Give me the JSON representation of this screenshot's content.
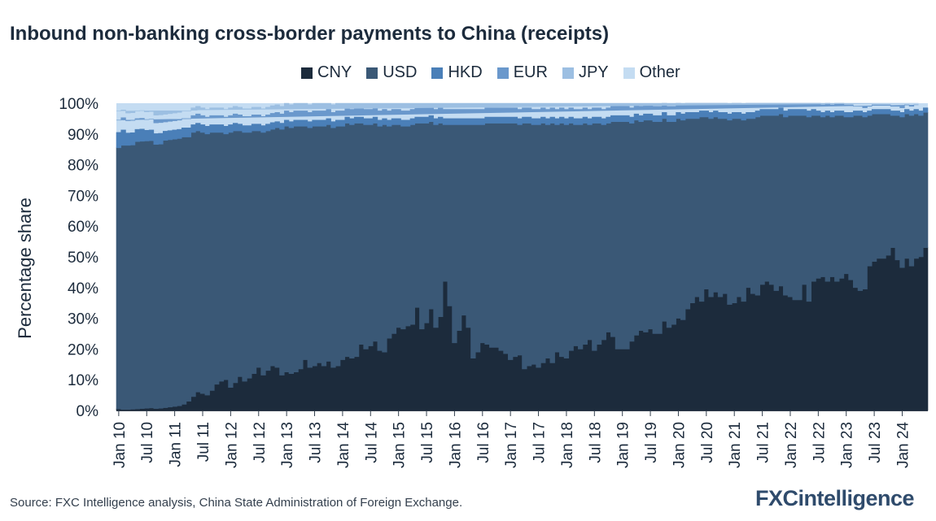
{
  "logo_text": "FXCintelligence",
  "source": "Source: FXC Intelligence analysis, China State Administration of Foreign Exchange.",
  "chart_data": {
    "type": "area",
    "stacked": true,
    "step": true,
    "title": "Inbound non-banking cross-border payments to China (receipts)",
    "xlabel": "",
    "ylabel": "Percentage share",
    "ylim": [
      0,
      100
    ],
    "y_ticks": [
      "0%",
      "10%",
      "20%",
      "30%",
      "40%",
      "50%",
      "60%",
      "70%",
      "80%",
      "90%",
      "100%"
    ],
    "x_tick_labels": [
      "Jan 10",
      "Jul 10",
      "Jan 11",
      "Jul 11",
      "Jan 12",
      "Jul 12",
      "Jan 13",
      "Jul 13",
      "Jan 14",
      "Jul 14",
      "Jan 15",
      "Jul 15",
      "Jan 16",
      "Jul 16",
      "Jan 17",
      "Jul 17",
      "Jan 18",
      "Jul 18",
      "Jan 19",
      "Jul 19",
      "Jan 20",
      "Jul 20",
      "Jan 21",
      "Jul 21",
      "Jan 22",
      "Jul 22",
      "Jan 23",
      "Jul 23",
      "Jan 24"
    ],
    "legend_position": "top",
    "grid": false,
    "period_start": "2010-01",
    "period_end": "2024-06",
    "frequency": "monthly",
    "series": [
      {
        "name": "CNY",
        "color": "#1c2b3c",
        "values": [
          0.5,
          0.3,
          0.3,
          0.4,
          0.5,
          0.6,
          0.7,
          0.8,
          0.6,
          0.7,
          0.9,
          1.1,
          1.3,
          1.5,
          2.0,
          3.0,
          4.5,
          6.0,
          5.5,
          5.0,
          6.5,
          8.5,
          9.5,
          10.0,
          7.5,
          9.0,
          11.0,
          9.5,
          10.5,
          12.0,
          14.0,
          11.5,
          13.0,
          14.5,
          14.0,
          11.5,
          12.5,
          12.0,
          12.5,
          13.5,
          16.5,
          14.0,
          14.5,
          15.5,
          14.5,
          16.0,
          14.0,
          14.5,
          16.5,
          17.5,
          17.0,
          17.5,
          21.5,
          20.0,
          21.0,
          22.5,
          19.5,
          19.0,
          23.5,
          25.0,
          27.0,
          26.5,
          27.5,
          28.0,
          33.5,
          26.5,
          28.5,
          33.0,
          27.0,
          30.5,
          42.0,
          34.0,
          22.0,
          26.0,
          31.0,
          27.0,
          17.0,
          19.0,
          22.0,
          21.5,
          20.5,
          20.5,
          19.5,
          18.5,
          16.5,
          17.5,
          18.0,
          13.5,
          14.5,
          15.0,
          14.0,
          15.5,
          17.0,
          15.5,
          19.0,
          17.5,
          17.0,
          19.5,
          21.0,
          20.0,
          21.5,
          23.0,
          19.5,
          21.5,
          23.0,
          25.5,
          24.0,
          20.0,
          20.0,
          20.0,
          22.5,
          24.5,
          26.0,
          25.5,
          26.5,
          25.0,
          25.0,
          29.0,
          27.0,
          28.0,
          30.0,
          29.5,
          33.0,
          35.0,
          37.0,
          35.5,
          39.5,
          37.0,
          38.5,
          37.0,
          38.0,
          34.5,
          35.0,
          37.0,
          35.5,
          40.0,
          38.0,
          37.5,
          41.0,
          42.0,
          41.0,
          39.0,
          40.5,
          37.5,
          37.0,
          36.0,
          36.0,
          41.0,
          35.5,
          42.0,
          43.0,
          43.5,
          42.0,
          43.5,
          42.0,
          43.0,
          44.5,
          42.5,
          40.0,
          39.0,
          39.5,
          47.0,
          48.5,
          49.5,
          49.5,
          50.5,
          53.0,
          49.0,
          46.5,
          49.5,
          47.0,
          49.5,
          50.0,
          53.0
        ]
      },
      {
        "name": "USD",
        "color": "#3a5876",
        "values": [
          85,
          86,
          86,
          86,
          87,
          87,
          87,
          87,
          86,
          86,
          87,
          87,
          87,
          87,
          87,
          86,
          86,
          85,
          85,
          85,
          84,
          82,
          81,
          80,
          83,
          82,
          80,
          81,
          80,
          79,
          77,
          79,
          78,
          77,
          78,
          80,
          80,
          80,
          80,
          79,
          76,
          78,
          78,
          77,
          78,
          77,
          78,
          78,
          76,
          76,
          76,
          76,
          72,
          73,
          72,
          71,
          73,
          74,
          69,
          68,
          66,
          66,
          65,
          65,
          60,
          67,
          65,
          61,
          66,
          63,
          51,
          59,
          71,
          67,
          62,
          66,
          76,
          74,
          71,
          72,
          73,
          73,
          74,
          75,
          77,
          76,
          75,
          80,
          79,
          78,
          79,
          78,
          76,
          78,
          74,
          76,
          76,
          74,
          72,
          73,
          72,
          70,
          74,
          72,
          70,
          68,
          70,
          74,
          74,
          74,
          71,
          70,
          68,
          69,
          68,
          69,
          69,
          66,
          67,
          66,
          65,
          65,
          62,
          60,
          58,
          60,
          56,
          58,
          57,
          58,
          57,
          60,
          60,
          58,
          59,
          55,
          57,
          58,
          55,
          54,
          55,
          57,
          56,
          58,
          59,
          60,
          60,
          55,
          60,
          54,
          53,
          52,
          54,
          52,
          54,
          53,
          51,
          53,
          56,
          57,
          56,
          49,
          48,
          47,
          47,
          46,
          43,
          47,
          49,
          47,
          49,
          47,
          46,
          44
        ]
      },
      {
        "name": "HKD",
        "color": "#4a7fb8",
        "values": [
          5,
          5,
          4,
          4,
          4,
          4,
          3.5,
          3.5,
          3.5,
          3.5,
          3,
          3,
          3,
          3,
          3,
          3,
          2.5,
          2.5,
          2.5,
          2.5,
          2.5,
          2.5,
          2.5,
          2.5,
          2.5,
          2.5,
          2.2,
          2.2,
          2.2,
          2.2,
          2.2,
          2.2,
          2.2,
          2.2,
          2,
          2,
          2,
          2,
          2,
          2,
          2,
          2,
          2,
          2,
          2,
          2,
          2,
          2,
          2,
          2,
          2,
          2,
          2,
          2,
          2,
          2,
          2,
          2,
          2,
          2,
          2,
          2,
          2,
          2,
          2,
          2,
          2,
          2,
          2,
          2,
          2,
          2,
          2,
          2,
          2,
          2,
          2,
          2,
          2,
          2,
          2,
          2,
          2,
          2,
          2,
          2,
          2,
          2,
          2,
          2,
          2,
          2,
          2,
          2,
          2,
          2,
          2,
          2,
          2,
          2,
          2,
          2,
          2,
          2,
          2,
          2,
          2,
          2,
          2,
          2,
          2,
          2,
          2,
          2,
          2,
          2,
          2,
          2,
          2,
          2,
          2,
          2,
          2,
          2,
          2,
          2,
          2,
          2,
          2,
          2,
          2,
          2,
          2,
          2,
          2,
          2,
          2,
          2,
          2,
          2,
          2,
          2,
          2,
          2,
          2,
          2,
          2,
          2,
          2,
          2,
          1.5,
          1.5,
          1.5,
          1.5,
          1.5,
          1.5,
          1.5,
          1.5,
          1.5,
          1.5,
          1.5,
          1.5,
          1.5,
          1.5,
          1.5,
          1.5,
          1.5,
          1.5,
          1.5,
          1.5,
          1.5,
          1.5,
          1.5,
          1.5,
          1.5,
          1.5,
          1.5,
          1.5
        ]
      },
      {
        "name": "EUR",
        "color": "#6a98cc",
        "values": [
          4,
          4,
          4,
          4,
          3.5,
          3.5,
          3.5,
          3.5,
          3.5,
          3.5,
          3,
          3,
          3,
          3,
          3,
          3,
          3,
          3,
          3,
          3,
          3,
          3,
          3,
          3,
          3,
          3,
          3,
          3,
          3,
          3,
          3,
          3,
          3,
          3,
          3,
          3,
          3,
          3,
          3,
          3,
          3,
          3,
          3,
          3,
          3,
          3,
          3,
          3,
          3,
          3,
          3,
          3,
          3,
          3,
          3,
          3,
          3,
          3,
          3,
          3,
          3,
          3,
          3,
          3,
          3,
          3,
          3,
          3,
          3,
          3,
          3,
          3,
          3,
          3,
          3,
          3,
          3,
          3,
          3,
          3,
          3,
          3,
          3,
          3,
          3,
          3,
          3,
          3,
          3,
          3,
          3,
          3,
          3,
          3,
          3,
          3,
          3,
          3,
          3,
          3,
          3,
          3,
          3,
          3,
          3,
          3,
          3,
          3,
          3,
          3,
          3,
          3,
          3,
          3,
          3,
          3,
          3,
          3,
          3,
          3,
          3,
          3,
          3,
          3,
          3,
          3,
          3,
          3,
          3,
          3,
          3,
          3,
          3,
          3,
          3,
          3,
          3,
          3,
          3,
          3,
          3,
          3,
          3,
          3,
          2.5,
          2.5,
          2.5,
          2.5,
          2.5,
          2.5,
          2.5,
          2.5,
          2.5,
          2.5,
          2.5,
          2.5,
          2.5,
          2.5,
          1.5,
          1.5,
          1.5,
          1.5,
          1.5,
          1.5,
          1.5,
          1.5,
          1.5,
          1.5,
          1.5,
          1.5,
          1.5,
          1.5
        ]
      },
      {
        "name": "JPY",
        "color": "#9cbfe2",
        "values": [
          3,
          2.5,
          2.5,
          2.5,
          2.5,
          2.5,
          2.5,
          2.5,
          2.5,
          2.5,
          2.5,
          2.5,
          2.5,
          2.5,
          2.5,
          2.5,
          2.5,
          2.5,
          2.5,
          2.5,
          2.5,
          2.5,
          2.5,
          2.5,
          2.5,
          2.5,
          2.5,
          2.5,
          2.5,
          2.5,
          2.5,
          2.5,
          2.5,
          2.5,
          2.5,
          2.5,
          2.5,
          2.5,
          2.5,
          2.5,
          2.5,
          2.5,
          2.5,
          2.5,
          2.5,
          2.5,
          2.5,
          2.5,
          2.5,
          2.5,
          2.5,
          2.5,
          2.5,
          2.5,
          2.5,
          2.5,
          2.5,
          2.5,
          2.5,
          2.5,
          2.5,
          2.5,
          2.5,
          2.5,
          2.5,
          2.5,
          2.5,
          2.5,
          2.5,
          2.5,
          2.5,
          2.5,
          2.5,
          2.5,
          2.5,
          2.5,
          2.5,
          2.5,
          2.5,
          2.5,
          2.5,
          2.5,
          2.5,
          2.5,
          2.5,
          2.5,
          2.5,
          2.5,
          2.5,
          2.5,
          2.5,
          2.5,
          2.5,
          2.5,
          2.5,
          2.5,
          2.5,
          2.5,
          2.5,
          2.5,
          2.5,
          2.5,
          2.5,
          2.5,
          2.5,
          2.5,
          2.5,
          2.5,
          2.5,
          2.5,
          2.5,
          2.5,
          2.5,
          2.5,
          2.5,
          2.5,
          2.5,
          2.5,
          2.5,
          2.5,
          2.5,
          2.5,
          2.5,
          2.5,
          2.5,
          2.5,
          2.5,
          2.5,
          2.5,
          2.5,
          2.5,
          2.5,
          2.5,
          2.5,
          2.5,
          2.5,
          2.5,
          2.5,
          2.5,
          2.5,
          2.5,
          2.5,
          2.5,
          2.5,
          2.5,
          2.5,
          2.5,
          2.5,
          2.5,
          2.5,
          2.5,
          2.5,
          2.5,
          2.5,
          2.5,
          2.5,
          2.5,
          2.5,
          2.5,
          2.5,
          2.5,
          2.5,
          2.5,
          2.5,
          2.5,
          2.5,
          2.5,
          2.5,
          2.5,
          2.5,
          2.5,
          2.5,
          2.5,
          2.5
        ]
      },
      {
        "name": "Other",
        "color": "#c4dcf2",
        "values": null
      }
    ]
  }
}
